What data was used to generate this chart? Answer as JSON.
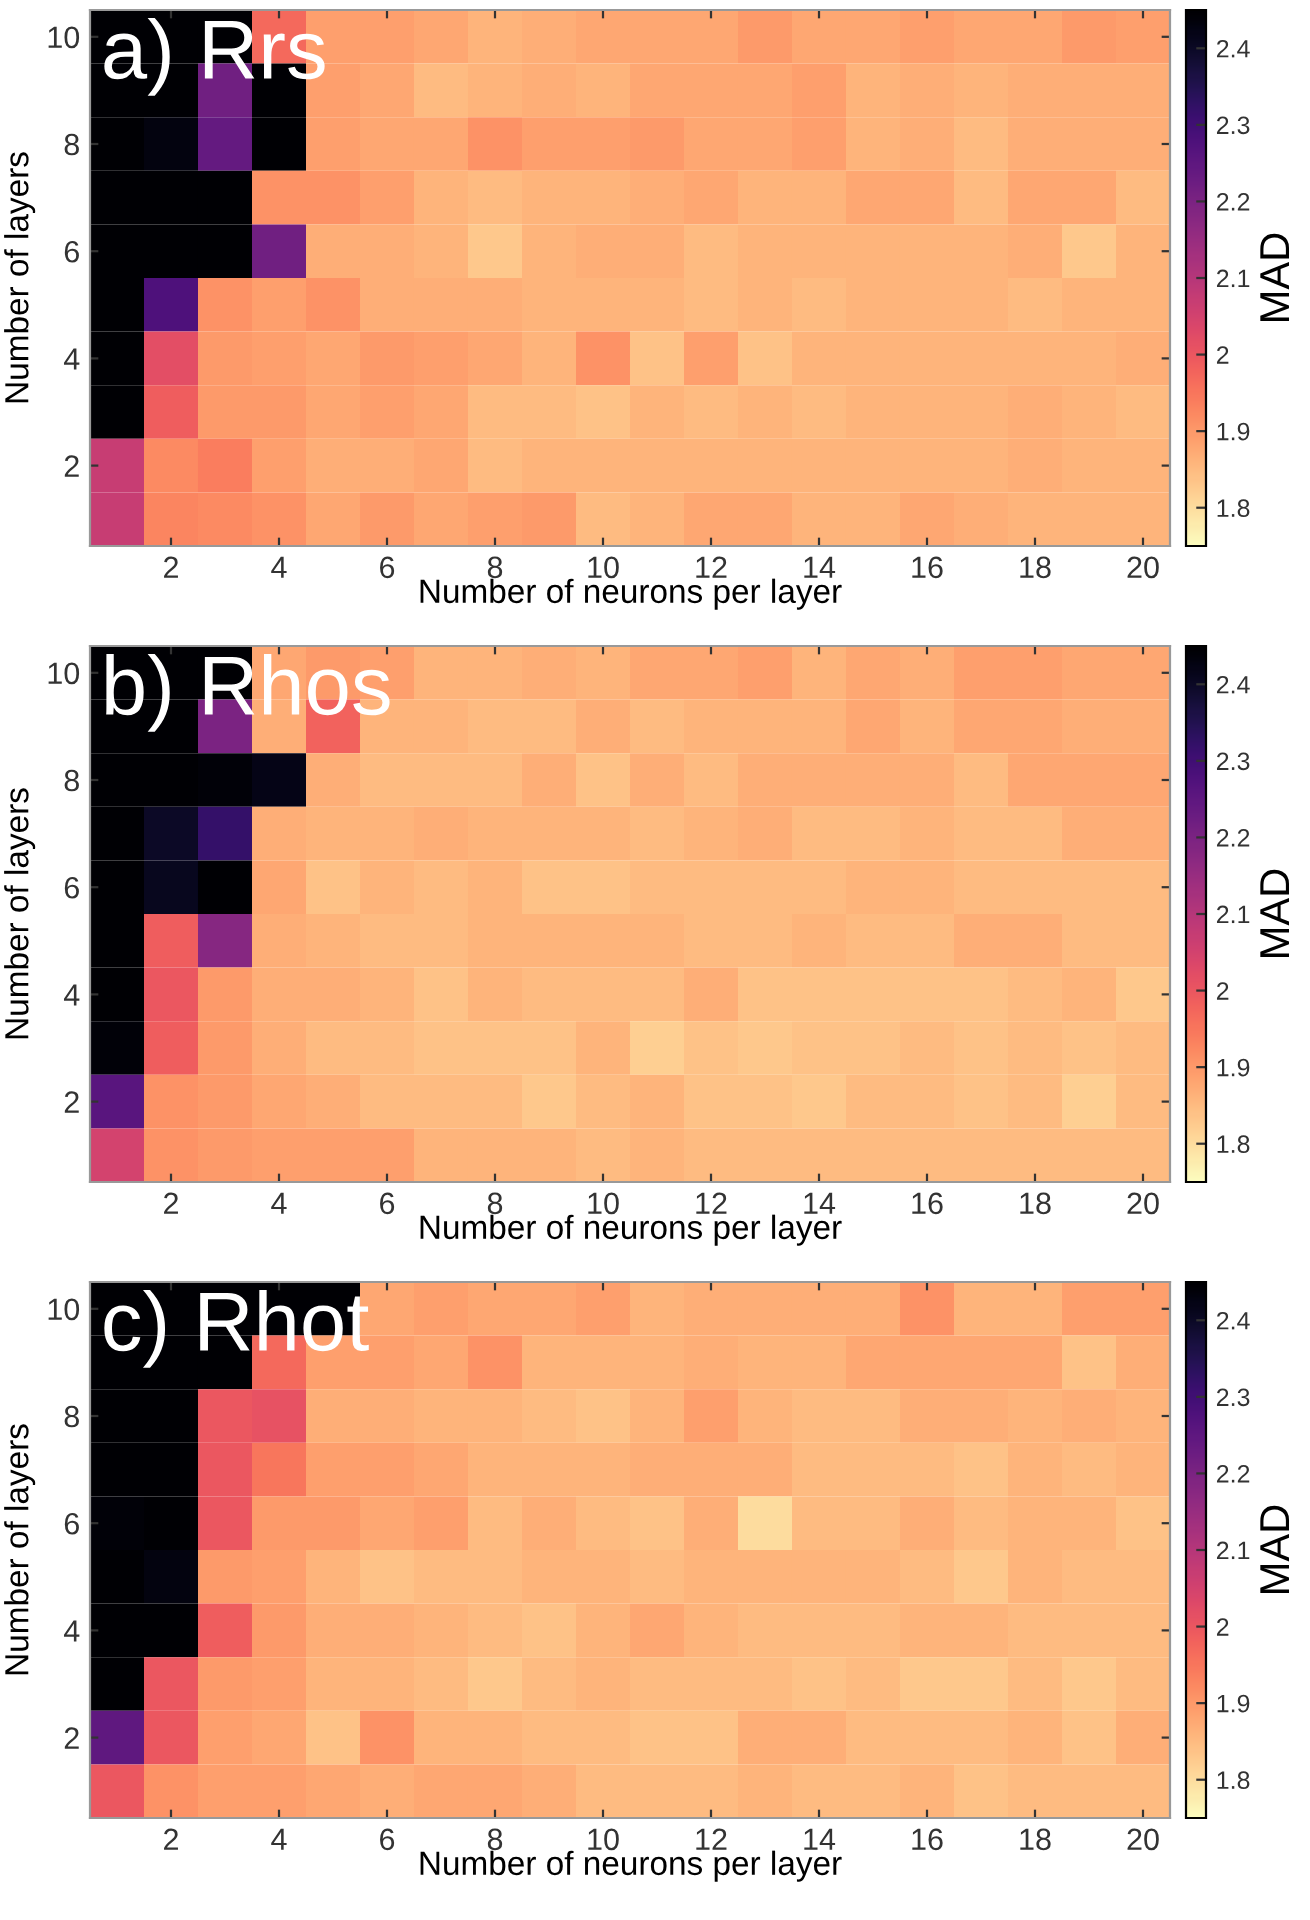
{
  "chart_data": [
    {
      "type": "heatmap",
      "title": "a) Rrs",
      "xlabel": "Number of neurons per layer",
      "ylabel": "Number of layers",
      "clabel": "MAD",
      "categories": [
        null,
        "2",
        null,
        "4",
        null,
        "6",
        null,
        "8",
        null,
        "10",
        null,
        "12",
        null,
        "14",
        null,
        "16",
        null,
        "18",
        null,
        "20"
      ],
      "y_categories": [
        "10",
        null,
        "8",
        null,
        "6",
        null,
        "4",
        null,
        "2",
        null
      ],
      "clim": [
        1.75,
        2.45
      ],
      "cticks": [
        1.8,
        1.9,
        2,
        2.1,
        2.2,
        2.3,
        2.4
      ],
      "cells": [
        [
          2.45,
          2.45,
          2.45,
          1.97,
          1.89,
          1.89,
          1.88,
          1.86,
          1.87,
          1.88,
          1.88,
          1.88,
          1.9,
          1.88,
          1.88,
          1.89,
          1.88,
          1.88,
          1.9,
          1.89
        ],
        [
          2.45,
          2.45,
          2.22,
          2.45,
          1.89,
          1.88,
          1.85,
          1.86,
          1.87,
          1.86,
          1.88,
          1.88,
          1.88,
          1.89,
          1.86,
          1.87,
          1.86,
          1.87,
          1.87,
          1.87
        ],
        [
          2.45,
          2.43,
          2.24,
          2.45,
          1.89,
          1.88,
          1.88,
          1.91,
          1.89,
          1.89,
          1.9,
          1.88,
          1.88,
          1.89,
          1.86,
          1.87,
          1.85,
          1.87,
          1.87,
          1.87
        ],
        [
          2.45,
          2.45,
          2.45,
          1.91,
          1.91,
          1.89,
          1.86,
          1.85,
          1.86,
          1.86,
          1.87,
          1.88,
          1.86,
          1.86,
          1.88,
          1.88,
          1.85,
          1.88,
          1.88,
          1.85
        ],
        [
          2.45,
          2.45,
          2.45,
          2.22,
          1.87,
          1.87,
          1.86,
          1.83,
          1.86,
          1.87,
          1.87,
          1.85,
          1.86,
          1.86,
          1.86,
          1.86,
          1.86,
          1.87,
          1.83,
          1.86
        ],
        [
          2.45,
          2.28,
          1.91,
          1.89,
          1.91,
          1.87,
          1.87,
          1.87,
          1.86,
          1.86,
          1.86,
          1.85,
          1.86,
          1.85,
          1.86,
          1.86,
          1.86,
          1.85,
          1.86,
          1.86
        ],
        [
          2.45,
          2.02,
          1.9,
          1.89,
          1.88,
          1.9,
          1.89,
          1.88,
          1.86,
          1.91,
          1.84,
          1.89,
          1.84,
          1.86,
          1.86,
          1.86,
          1.86,
          1.86,
          1.86,
          1.87
        ],
        [
          2.45,
          1.99,
          1.9,
          1.9,
          1.88,
          1.89,
          1.88,
          1.85,
          1.85,
          1.84,
          1.86,
          1.85,
          1.86,
          1.85,
          1.86,
          1.86,
          1.86,
          1.87,
          1.86,
          1.85
        ],
        [
          2.07,
          1.92,
          1.94,
          1.89,
          1.87,
          1.87,
          1.88,
          1.85,
          1.86,
          1.86,
          1.86,
          1.86,
          1.86,
          1.86,
          1.86,
          1.86,
          1.86,
          1.87,
          1.86,
          1.86
        ],
        [
          2.07,
          1.93,
          1.92,
          1.91,
          1.88,
          1.9,
          1.88,
          1.89,
          1.9,
          1.85,
          1.86,
          1.88,
          1.88,
          1.86,
          1.86,
          1.88,
          1.87,
          1.86,
          1.86,
          1.86
        ]
      ]
    },
    {
      "type": "heatmap",
      "title": "b) Rhos",
      "xlabel": "Number of neurons per layer",
      "ylabel": "Number of layers",
      "clabel": "MAD",
      "categories": [
        null,
        "2",
        null,
        "4",
        null,
        "6",
        null,
        "8",
        null,
        "10",
        null,
        "12",
        null,
        "14",
        null,
        "16",
        null,
        "18",
        null,
        "20"
      ],
      "y_categories": [
        "10",
        null,
        "8",
        null,
        "6",
        null,
        "4",
        null,
        "2",
        null
      ],
      "clim": [
        1.75,
        2.45
      ],
      "cticks": [
        1.8,
        1.9,
        2,
        2.1,
        2.2,
        2.3,
        2.4
      ],
      "cells": [
        [
          2.45,
          2.45,
          2.45,
          1.88,
          1.9,
          1.89,
          1.86,
          1.86,
          1.87,
          1.86,
          1.88,
          1.88,
          1.89,
          1.86,
          1.88,
          1.87,
          1.89,
          1.89,
          1.88,
          1.88
        ],
        [
          2.45,
          2.45,
          2.2,
          1.87,
          1.98,
          1.86,
          1.86,
          1.85,
          1.85,
          1.87,
          1.85,
          1.86,
          1.86,
          1.86,
          1.88,
          1.86,
          1.88,
          1.88,
          1.87,
          1.87
        ],
        [
          2.45,
          2.45,
          2.44,
          2.42,
          1.87,
          1.85,
          1.85,
          1.85,
          1.87,
          1.84,
          1.87,
          1.85,
          1.87,
          1.87,
          1.87,
          1.87,
          1.85,
          1.88,
          1.88,
          1.88
        ],
        [
          2.45,
          2.4,
          2.32,
          1.87,
          1.86,
          1.86,
          1.87,
          1.86,
          1.86,
          1.86,
          1.85,
          1.86,
          1.87,
          1.85,
          1.85,
          1.86,
          1.85,
          1.85,
          1.87,
          1.87
        ],
        [
          2.45,
          2.41,
          2.45,
          1.88,
          1.84,
          1.86,
          1.85,
          1.86,
          1.84,
          1.84,
          1.85,
          1.85,
          1.85,
          1.85,
          1.86,
          1.86,
          1.85,
          1.85,
          1.85,
          1.85
        ],
        [
          2.45,
          1.99,
          2.18,
          1.87,
          1.86,
          1.85,
          1.85,
          1.86,
          1.86,
          1.86,
          1.86,
          1.85,
          1.85,
          1.86,
          1.85,
          1.85,
          1.87,
          1.87,
          1.85,
          1.85
        ],
        [
          2.45,
          2.0,
          1.9,
          1.87,
          1.87,
          1.86,
          1.84,
          1.86,
          1.85,
          1.85,
          1.85,
          1.87,
          1.84,
          1.84,
          1.84,
          1.84,
          1.84,
          1.85,
          1.86,
          1.83
        ],
        [
          2.44,
          1.99,
          1.9,
          1.87,
          1.85,
          1.85,
          1.84,
          1.84,
          1.84,
          1.86,
          1.82,
          1.84,
          1.83,
          1.84,
          1.84,
          1.85,
          1.84,
          1.85,
          1.84,
          1.85
        ],
        [
          2.26,
          1.91,
          1.9,
          1.88,
          1.87,
          1.85,
          1.85,
          1.85,
          1.83,
          1.85,
          1.86,
          1.84,
          1.84,
          1.83,
          1.85,
          1.85,
          1.84,
          1.85,
          1.82,
          1.85
        ],
        [
          2.05,
          1.91,
          1.9,
          1.89,
          1.89,
          1.89,
          1.86,
          1.86,
          1.86,
          1.85,
          1.86,
          1.85,
          1.85,
          1.85,
          1.85,
          1.85,
          1.85,
          1.85,
          1.85,
          1.85
        ]
      ]
    },
    {
      "type": "heatmap",
      "title": "c) Rhot",
      "xlabel": "Number of neurons per layer",
      "ylabel": "Number of layers",
      "clabel": "MAD",
      "categories": [
        null,
        "2",
        null,
        "4",
        null,
        "6",
        null,
        "8",
        null,
        "10",
        null,
        "12",
        null,
        "14",
        null,
        "16",
        null,
        "18",
        null,
        "20"
      ],
      "y_categories": [
        "10",
        null,
        "8",
        null,
        "6",
        null,
        "4",
        null,
        "2",
        null
      ],
      "clim": [
        1.75,
        2.45
      ],
      "cticks": [
        1.8,
        1.9,
        2,
        2.1,
        2.2,
        2.3,
        2.4
      ],
      "cells": [
        [
          2.45,
          2.45,
          2.45,
          2.45,
          2.45,
          1.88,
          1.89,
          1.88,
          1.88,
          1.89,
          1.86,
          1.87,
          1.87,
          1.87,
          1.87,
          1.91,
          1.86,
          1.86,
          1.89,
          1.89
        ],
        [
          2.45,
          2.45,
          2.45,
          1.97,
          1.89,
          1.89,
          1.88,
          1.91,
          1.86,
          1.86,
          1.86,
          1.87,
          1.86,
          1.86,
          1.88,
          1.88,
          1.88,
          1.88,
          1.84,
          1.87
        ],
        [
          2.45,
          2.45,
          2.0,
          2.01,
          1.87,
          1.87,
          1.86,
          1.86,
          1.85,
          1.84,
          1.86,
          1.89,
          1.86,
          1.85,
          1.85,
          1.87,
          1.87,
          1.86,
          1.87,
          1.86
        ],
        [
          2.45,
          2.45,
          2.0,
          1.95,
          1.89,
          1.89,
          1.88,
          1.86,
          1.86,
          1.86,
          1.87,
          1.87,
          1.87,
          1.85,
          1.85,
          1.85,
          1.84,
          1.86,
          1.85,
          1.86
        ],
        [
          2.44,
          2.45,
          2.0,
          1.9,
          1.9,
          1.88,
          1.89,
          1.85,
          1.87,
          1.85,
          1.84,
          1.87,
          1.8,
          1.85,
          1.85,
          1.87,
          1.85,
          1.86,
          1.86,
          1.84
        ],
        [
          2.45,
          2.43,
          1.9,
          1.89,
          1.86,
          1.84,
          1.85,
          1.85,
          1.86,
          1.86,
          1.85,
          1.86,
          1.86,
          1.86,
          1.86,
          1.85,
          1.83,
          1.86,
          1.85,
          1.85
        ],
        [
          2.45,
          2.45,
          1.99,
          1.9,
          1.87,
          1.87,
          1.86,
          1.85,
          1.84,
          1.86,
          1.88,
          1.86,
          1.85,
          1.85,
          1.85,
          1.86,
          1.86,
          1.85,
          1.85,
          1.85
        ],
        [
          2.45,
          2.0,
          1.9,
          1.89,
          1.86,
          1.86,
          1.85,
          1.83,
          1.85,
          1.86,
          1.85,
          1.85,
          1.85,
          1.84,
          1.85,
          1.83,
          1.83,
          1.85,
          1.83,
          1.85
        ],
        [
          2.25,
          2.0,
          1.89,
          1.88,
          1.84,
          1.91,
          1.86,
          1.86,
          1.85,
          1.85,
          1.84,
          1.84,
          1.87,
          1.87,
          1.85,
          1.85,
          1.85,
          1.86,
          1.84,
          1.87
        ],
        [
          2.0,
          1.91,
          1.89,
          1.89,
          1.88,
          1.87,
          1.88,
          1.88,
          1.87,
          1.85,
          1.85,
          1.85,
          1.86,
          1.85,
          1.85,
          1.86,
          1.84,
          1.85,
          1.85,
          1.85
        ]
      ]
    }
  ]
}
